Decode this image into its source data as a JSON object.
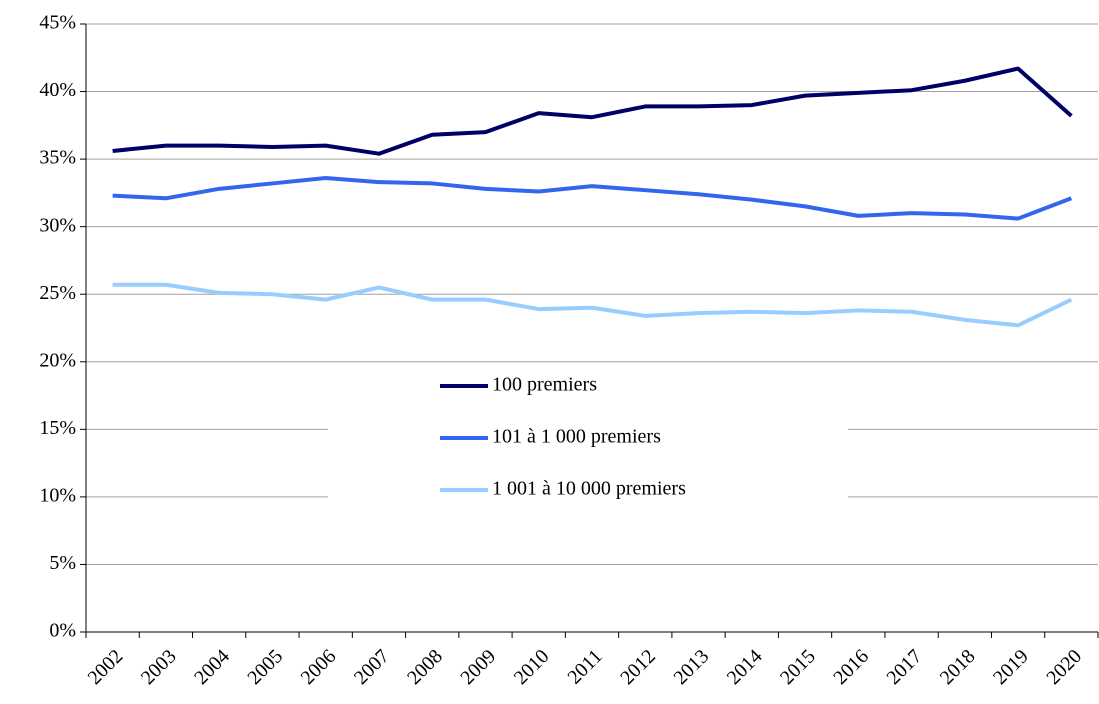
{
  "chart_data": {
    "type": "line",
    "categories": [
      "2002",
      "2003",
      "2004",
      "2005",
      "2006",
      "2007",
      "2008",
      "2009",
      "2010",
      "2011",
      "2012",
      "2013",
      "2014",
      "2015",
      "2016",
      "2017",
      "2018",
      "2019",
      "2020"
    ],
    "series": [
      {
        "name": "100 premiers",
        "color": "#000066",
        "values": [
          35.6,
          36.0,
          36.0,
          35.9,
          36.0,
          35.4,
          36.8,
          37.0,
          38.4,
          38.1,
          38.9,
          38.9,
          39.0,
          39.7,
          39.9,
          40.1,
          40.8,
          41.7,
          38.2
        ]
      },
      {
        "name": "101 à 1 000 premiers",
        "color": "#3366ee",
        "values": [
          32.3,
          32.1,
          32.8,
          33.2,
          33.6,
          33.3,
          33.2,
          32.8,
          32.6,
          33.0,
          32.7,
          32.4,
          32.0,
          31.5,
          30.8,
          31.0,
          30.9,
          30.6,
          32.1
        ]
      },
      {
        "name": "1 001 à 10 000 premiers",
        "color": "#99ccff",
        "values": [
          25.7,
          25.7,
          25.1,
          25.0,
          24.6,
          25.5,
          24.6,
          24.6,
          23.9,
          24.0,
          23.4,
          23.6,
          23.7,
          23.6,
          23.8,
          23.7,
          23.1,
          22.7,
          24.6
        ]
      }
    ],
    "ylim": [
      0,
      45
    ],
    "yticks": [
      {
        "value": 0,
        "label": "0%"
      },
      {
        "value": 5,
        "label": "5%"
      },
      {
        "value": 10,
        "label": "10%"
      },
      {
        "value": 15,
        "label": "15%"
      },
      {
        "value": 20,
        "label": "20%"
      },
      {
        "value": 25,
        "label": "25%"
      },
      {
        "value": 30,
        "label": "30%"
      },
      {
        "value": 35,
        "label": "35%"
      },
      {
        "value": 40,
        "label": "40%"
      },
      {
        "value": 45,
        "label": "45%"
      }
    ],
    "grid": true,
    "legend": "center"
  }
}
